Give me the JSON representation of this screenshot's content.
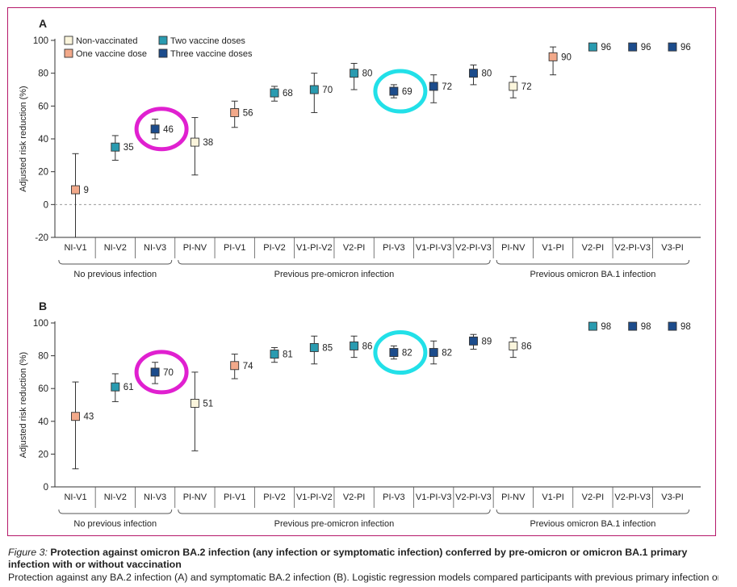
{
  "chart_data": [
    {
      "panel": "A",
      "type": "scatter",
      "ylabel": "Adjusted risk reduction (%)",
      "ylim": [
        -20,
        100
      ],
      "yticks": [
        -20,
        0,
        20,
        40,
        60,
        80,
        100
      ],
      "reference_line": 0,
      "categories": [
        "NI-V1",
        "NI-V2",
        "NI-V3",
        "PI-NV",
        "PI-V1",
        "PI-V2",
        "V1-PI-V2",
        "V2-PI",
        "PI-V3",
        "V1-PI-V3",
        "V2-PI-V3",
        "PI-NV",
        "V1-PI",
        "V2-PI",
        "V2-PI-V3",
        "V3-PI"
      ],
      "groups": [
        {
          "label": "No previous infection",
          "start": 0,
          "end": 2
        },
        {
          "label": "Previous pre-omicron infection",
          "start": 3,
          "end": 10
        },
        {
          "label": "Previous omicron BA.1 infection",
          "start": 11,
          "end": 15
        }
      ],
      "legend": [
        {
          "key": "nv",
          "label": "Non-vaccinated",
          "color": "#fbf5dc"
        },
        {
          "key": "one",
          "label": "One vaccine dose",
          "color": "#f2a98a"
        },
        {
          "key": "two",
          "label": "Two vaccine doses",
          "color": "#2a9bb0"
        },
        {
          "key": "three",
          "label": "Three vaccine doses",
          "color": "#1c4c8c"
        }
      ],
      "points": [
        {
          "value": 9,
          "label": "9",
          "lo": -20,
          "hi": 31,
          "dose": "one"
        },
        {
          "value": 35,
          "label": "35",
          "lo": 27,
          "hi": 42,
          "dose": "two"
        },
        {
          "value": 46,
          "label": "46",
          "lo": 40,
          "hi": 52,
          "dose": "three"
        },
        {
          "value": 38,
          "label": "38",
          "lo": 18,
          "hi": 53,
          "dose": "nv"
        },
        {
          "value": 56,
          "label": "56",
          "lo": 47,
          "hi": 63,
          "dose": "one"
        },
        {
          "value": 68,
          "label": "68",
          "lo": 63,
          "hi": 72,
          "dose": "two"
        },
        {
          "value": 70,
          "label": "70",
          "lo": 56,
          "hi": 80,
          "dose": "two"
        },
        {
          "value": 80,
          "label": "80",
          "lo": 70,
          "hi": 86,
          "dose": "two"
        },
        {
          "value": 69,
          "label": "69",
          "lo": 65,
          "hi": 73,
          "dose": "three"
        },
        {
          "value": 72,
          "label": "72",
          "lo": 62,
          "hi": 79,
          "dose": "three"
        },
        {
          "value": 80,
          "label": "80",
          "lo": 73,
          "hi": 85,
          "dose": "three"
        },
        {
          "value": 72,
          "label": "72",
          "lo": 65,
          "hi": 78,
          "dose": "nv"
        },
        {
          "value": 90,
          "label": "90",
          "lo": 79,
          "hi": 96,
          "dose": "one"
        },
        {
          "value": 96,
          "label": "96",
          "lo": null,
          "hi": null,
          "dose": "two"
        },
        {
          "value": 96,
          "label": "96",
          "lo": null,
          "hi": null,
          "dose": "three"
        },
        {
          "value": 96,
          "label": "96",
          "lo": null,
          "hi": null,
          "dose": "three"
        }
      ],
      "highlights": [
        {
          "index": 2,
          "color": "#e020d0"
        },
        {
          "index": 8,
          "color": "#22e0e8"
        }
      ]
    },
    {
      "panel": "B",
      "type": "scatter",
      "ylabel": "Adjusted risk reduction (%)",
      "ylim": [
        0,
        100
      ],
      "yticks": [
        0,
        20,
        40,
        60,
        80,
        100
      ],
      "reference_line": null,
      "categories": [
        "NI-V1",
        "NI-V2",
        "NI-V3",
        "PI-NV",
        "PI-V1",
        "PI-V2",
        "V1-PI-V2",
        "V2-PI",
        "PI-V3",
        "V1-PI-V3",
        "V2-PI-V3",
        "PI-NV",
        "V1-PI",
        "V2-PI",
        "V2-PI-V3",
        "V3-PI"
      ],
      "groups": [
        {
          "label": "No previous infection",
          "start": 0,
          "end": 2
        },
        {
          "label": "Previous pre-omicron infection",
          "start": 3,
          "end": 10
        },
        {
          "label": "Previous omicron BA.1 infection",
          "start": 11,
          "end": 15
        }
      ],
      "points": [
        {
          "value": 43,
          "label": "43",
          "lo": 11,
          "hi": 64,
          "dose": "one"
        },
        {
          "value": 61,
          "label": "61",
          "lo": 52,
          "hi": 69,
          "dose": "two"
        },
        {
          "value": 70,
          "label": "70",
          "lo": 63,
          "hi": 76,
          "dose": "three"
        },
        {
          "value": 51,
          "label": "51",
          "lo": 22,
          "hi": 70,
          "dose": "nv"
        },
        {
          "value": 74,
          "label": "74",
          "lo": 66,
          "hi": 81,
          "dose": "one"
        },
        {
          "value": 81,
          "label": "81",
          "lo": 76,
          "hi": 85,
          "dose": "two"
        },
        {
          "value": 85,
          "label": "85",
          "lo": 75,
          "hi": 92,
          "dose": "two"
        },
        {
          "value": 86,
          "label": "86",
          "lo": 79,
          "hi": 92,
          "dose": "two"
        },
        {
          "value": 82,
          "label": "82",
          "lo": 78,
          "hi": 86,
          "dose": "three"
        },
        {
          "value": 82,
          "label": "82",
          "lo": 75,
          "hi": 89,
          "dose": "three"
        },
        {
          "value": 89,
          "label": "89",
          "lo": 84,
          "hi": 93,
          "dose": "three"
        },
        {
          "value": 86,
          "label": "86",
          "lo": 79,
          "hi": 91,
          "dose": "nv"
        },
        {
          "value": 98,
          "label": "98",
          "lo": null,
          "hi": null,
          "dose": "two"
        },
        {
          "value": 98,
          "label": "98",
          "lo": null,
          "hi": null,
          "dose": "three"
        },
        {
          "value": 98,
          "label": "98",
          "lo": null,
          "hi": null,
          "dose": "three"
        }
      ],
      "skip_indices": [
        12
      ],
      "highlights": [
        {
          "index": 2,
          "color": "#e020d0"
        },
        {
          "index": 8,
          "color": "#22e0e8"
        }
      ]
    }
  ],
  "caption": {
    "label": "Figure 3:",
    "title": "Protection against omicron BA.2 infection (any infection or symptomatic infection) conferred by pre-omicron or omicron BA.1 primary infection with or without vaccination",
    "body": "Protection against any BA.2 infection (A) and symptomatic BA.2 infection (B). Logistic regression models compared participants with previous primary infection or"
  }
}
